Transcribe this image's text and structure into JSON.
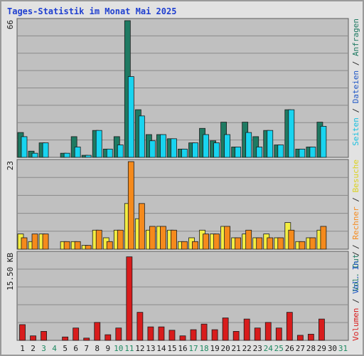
{
  "chart_data": {
    "type": "bar",
    "title": "Tages-Statistik im Monat Mai 2025",
    "categories": [
      "1",
      "2",
      "3",
      "4",
      "5",
      "6",
      "7",
      "8",
      "9",
      "10",
      "11",
      "12",
      "13",
      "14",
      "15",
      "16",
      "17",
      "18",
      "19",
      "20",
      "21",
      "22",
      "23",
      "24",
      "25",
      "26",
      "27",
      "28",
      "29",
      "30",
      "31"
    ],
    "weekend_days": [
      3,
      4,
      10,
      11,
      17,
      18,
      24,
      25,
      31
    ],
    "panels": [
      {
        "id": "hits",
        "max_label": "66",
        "ylim": [
          0,
          66
        ],
        "series": [
          {
            "name": "Anfragen",
            "color": "#1e7a62",
            "values": [
              12,
              3,
              7,
              0,
              2,
              10,
              1,
              13,
              4,
              10,
              66,
              23,
              11,
              11,
              9,
              4,
              7,
              14,
              8,
              17,
              5,
              17,
              10,
              13,
              6,
              23,
              4,
              5,
              17,
              0,
              0
            ]
          },
          {
            "name": "Dateien",
            "color": "#18d4f0",
            "values": [
              10,
              2,
              7,
              0,
              2,
              5,
              1,
              13,
              4,
              6,
              39,
              20,
              8,
              11,
              9,
              4,
              7,
              11,
              7,
              11,
              5,
              12,
              5,
              13,
              6,
              23,
              4,
              5,
              15,
              0,
              0
            ]
          },
          {
            "name": "Seiten",
            "color": "#2a9ad8",
            "values": [
              0,
              0,
              0,
              0,
              0,
              0,
              0,
              0,
              0,
              0,
              0,
              0,
              0,
              0,
              0,
              0,
              0,
              0,
              0,
              0,
              0,
              0,
              0,
              0,
              0,
              0,
              0,
              0,
              0,
              0,
              0
            ]
          }
        ],
        "ylabel_parts": [
          {
            "text": "Seiten",
            "color": "#18c0e0"
          },
          {
            "text": " / ",
            "color": "#2d2d2d"
          },
          {
            "text": "Dateien",
            "color": "#1f57c6"
          },
          {
            "text": " / ",
            "color": "#2d2d2d"
          },
          {
            "text": "Anfragen",
            "color": "#1e7a62"
          }
        ]
      },
      {
        "id": "visits",
        "max_label": "23",
        "ylim": [
          0,
          23
        ],
        "series": [
          {
            "name": "Besuche",
            "color": "#f4ee42",
            "values": [
              4,
              2,
              4,
              0,
              2,
              2,
              1,
              5,
              3,
              5,
              12,
              8,
              5,
              6,
              5,
              2,
              3,
              5,
              4,
              6,
              3,
              4,
              3,
              4,
              3,
              7,
              2,
              3,
              5,
              0,
              0
            ]
          },
          {
            "name": "Rechner",
            "color": "#f58a1c",
            "values": [
              3,
              4,
              4,
              0,
              2,
              2,
              1,
              5,
              2,
              5,
              23,
              12,
              6,
              6,
              5,
              2,
              2,
              4,
              4,
              6,
              3,
              5,
              3,
              3,
              3,
              5,
              2,
              3,
              6,
              0,
              0
            ]
          }
        ],
        "ylabel_parts": [
          {
            "text": "Vol. Out",
            "color": "#1e7a62"
          },
          {
            "text": " / ",
            "color": "#2d2d2d"
          },
          {
            "text": "Rechner",
            "color": "#f58a1c"
          },
          {
            "text": " / ",
            "color": "#2d2d2d"
          },
          {
            "text": "Besuche",
            "color": "#dcd21e"
          }
        ]
      },
      {
        "id": "volume",
        "max_label": "15.50 KB",
        "ylim": [
          0,
          15.5
        ],
        "series": [
          {
            "name": "Volumen",
            "color": "#d81c1c",
            "values": [
              2.8,
              0.8,
              1.6,
              0,
              0.6,
              2.2,
              0.4,
              3.2,
              1,
              2.2,
              14.9,
              5,
              2.4,
              2.4,
              1.8,
              0.8,
              1.9,
              2.9,
              1.9,
              4,
              1.6,
              3.8,
              2.2,
              3.2,
              2.2,
              5,
              0.9,
              1.1,
              3.8,
              0,
              0
            ]
          }
        ],
        "ylabel_parts": [
          {
            "text": "Volumen",
            "color": "#d81c1c"
          },
          {
            "text": " / ",
            "color": "#2d2d2d"
          },
          {
            "text": "Vol. In",
            "color": "#1f57c6"
          },
          {
            "text": " / ",
            "color": "#2d2d2d"
          }
        ]
      }
    ],
    "colors": {
      "title": "#1f3fd0",
      "plot_bg": "#c0c0c0",
      "frame_bg": "#e2e2e2",
      "grid": "#8a8a8a",
      "weekday_label": "#1a1a1a",
      "weekend_label": "#1f8a62"
    },
    "grid": true
  }
}
